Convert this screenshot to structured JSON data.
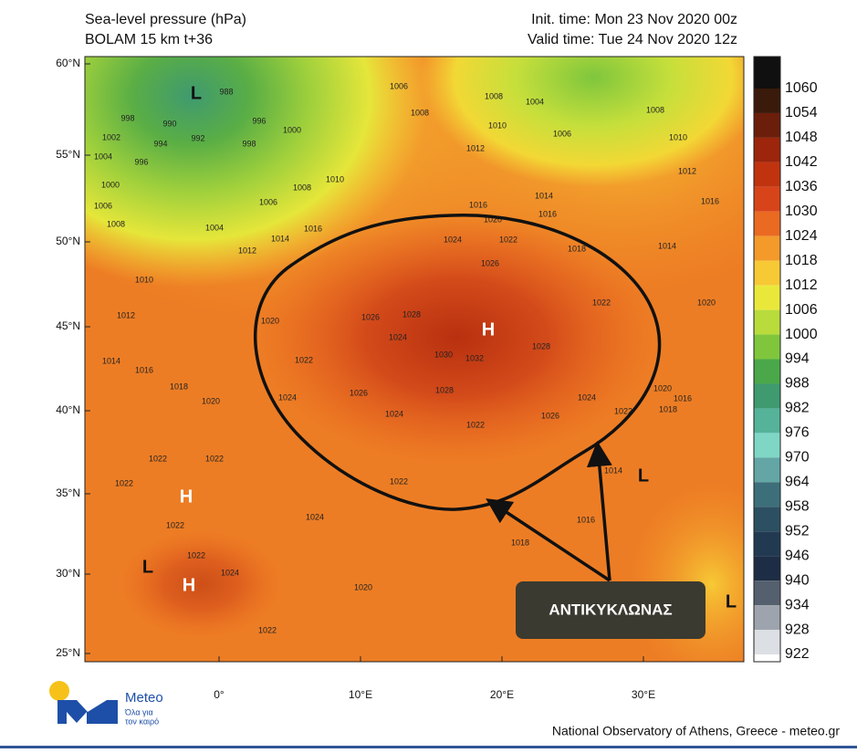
{
  "header": {
    "title": "Sea-level pressure (hPa)",
    "model": "BOLAM 15 km t+36",
    "init_time": "Init. time: Mon 23 Nov 2020 00z",
    "valid_time": "Valid time: Tue 24 Nov 2020 12z"
  },
  "map": {
    "lat_labels": [
      "60°N",
      "55°N",
      "50°N",
      "45°N",
      "40°N",
      "35°N",
      "30°N",
      "25°N"
    ],
    "lon_labels": [
      "0°",
      "10°E",
      "20°E",
      "30°E"
    ],
    "isobar_labels": [
      988,
      998,
      990,
      992,
      996,
      1002,
      994,
      1004,
      996,
      998,
      1000,
      1000,
      1006,
      1008,
      1004,
      1006,
      1008,
      1010,
      1012,
      1014,
      1016,
      1010,
      1012,
      1014,
      1016,
      1018,
      1020,
      1020,
      1022,
      1024,
      1026,
      1028,
      1024,
      1026,
      1024,
      1028,
      1030,
      1032,
      1022,
      1026,
      1024,
      1028,
      1022,
      1022,
      1020,
      1022,
      1024,
      1026,
      1020,
      1016,
      1012,
      1010,
      1008,
      1006,
      1008,
      1004,
      1006,
      1008,
      1010,
      1012,
      1014,
      1016,
      1016,
      1018,
      1014,
      1020,
      1016,
      1018,
      1014,
      1016,
      1018,
      1022,
      1024,
      1022,
      1022,
      1022,
      1022,
      1022,
      1024,
      1022,
      1020,
      1012,
      1010
    ],
    "pressure_centers": [
      "L",
      "L",
      "L",
      "L",
      "H",
      "H",
      "H"
    ],
    "annotation": "ΑΝΤΙΚΥΚΛΩΝΑΣ"
  },
  "colorbar": {
    "labels": [
      1060,
      1054,
      1048,
      1042,
      1036,
      1030,
      1024,
      1018,
      1012,
      1006,
      1000,
      994,
      988,
      982,
      976,
      970,
      964,
      958,
      952,
      946,
      940,
      934,
      928,
      922
    ]
  },
  "logo": {
    "name": "Meteo",
    "tagline_1": "Όλα για",
    "tagline_2": "τον καιρό"
  },
  "footer": "National Observatory of Athens, Greece - meteo.gr"
}
